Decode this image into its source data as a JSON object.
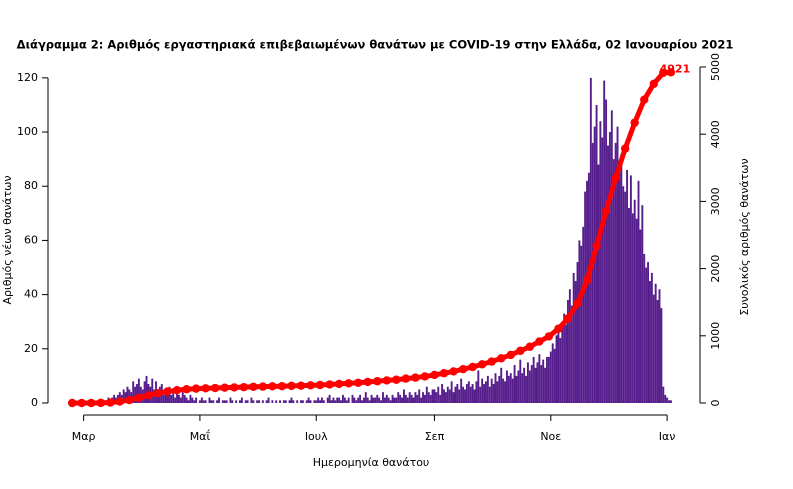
{
  "chart_data": {
    "type": "bar",
    "title": "Διάγραμμα 2: Αριθμός εργαστηριακά επιβεβαιωμένων θανάτων με COVID-19 στην Ελλάδα, 02 Ιανουαρίου 2021",
    "xlabel": "Ημερομηνία θανάτου",
    "ylabel": "Αριθμός νέων θανάτων",
    "y2label": "Συνολικός αριθμός θανάτων",
    "xlim": [
      -9,
      324
    ],
    "xticks": [
      {
        "value": 6,
        "label": "Μαρ"
      },
      {
        "value": 67,
        "label": "Μαΐ"
      },
      {
        "value": 128,
        "label": "Ιουλ"
      },
      {
        "value": 190,
        "label": "Σεπ"
      },
      {
        "value": 251,
        "label": "Νοε"
      },
      {
        "value": 312,
        "label": "Ιαν"
      }
    ],
    "ylim": [
      0,
      124
    ],
    "yticks": [
      0,
      20,
      40,
      60,
      80,
      100,
      120
    ],
    "y2lim": [
      0,
      5000
    ],
    "y2ticks": [
      0,
      1000,
      2000,
      3000,
      4000,
      5000
    ],
    "series": [
      {
        "type": "bar",
        "color": "#561e8c",
        "x": [
          0,
          1,
          2,
          3,
          4,
          5,
          6,
          7,
          8,
          9,
          10,
          11,
          12,
          13,
          14,
          15,
          16,
          17,
          18,
          19,
          20,
          21,
          22,
          23,
          24,
          25,
          26,
          27,
          28,
          29,
          30,
          31,
          32,
          33,
          34,
          35,
          36,
          37,
          38,
          39,
          40,
          41,
          42,
          43,
          44,
          45,
          46,
          47,
          48,
          49,
          50,
          51,
          52,
          53,
          54,
          55,
          56,
          57,
          58,
          59,
          60,
          61,
          62,
          63,
          64,
          65,
          66,
          67,
          68,
          69,
          70,
          71,
          72,
          73,
          74,
          75,
          76,
          77,
          78,
          79,
          80,
          81,
          82,
          83,
          84,
          85,
          86,
          87,
          88,
          89,
          90,
          91,
          92,
          93,
          94,
          95,
          96,
          97,
          98,
          99,
          100,
          101,
          102,
          103,
          104,
          105,
          106,
          107,
          108,
          109,
          110,
          111,
          112,
          113,
          114,
          115,
          116,
          117,
          118,
          119,
          120,
          121,
          122,
          123,
          124,
          125,
          126,
          127,
          128,
          129,
          130,
          131,
          132,
          133,
          134,
          135,
          136,
          137,
          138,
          139,
          140,
          141,
          142,
          143,
          144,
          145,
          146,
          147,
          148,
          149,
          150,
          151,
          152,
          153,
          154,
          155,
          156,
          157,
          158,
          159,
          160,
          161,
          162,
          163,
          164,
          165,
          166,
          167,
          168,
          169,
          170,
          171,
          172,
          173,
          174,
          175,
          176,
          177,
          178,
          179,
          180,
          181,
          182,
          183,
          184,
          185,
          186,
          187,
          188,
          189,
          190,
          191,
          192,
          193,
          194,
          195,
          196,
          197,
          198,
          199,
          200,
          201,
          202,
          203,
          204,
          205,
          206,
          207,
          208,
          209,
          210,
          211,
          212,
          213,
          214,
          215,
          216,
          217,
          218,
          219,
          220,
          221,
          222,
          223,
          224,
          225,
          226,
          227,
          228,
          229,
          230,
          231,
          232,
          233,
          234,
          235,
          236,
          237,
          238,
          239,
          240,
          241,
          242,
          243,
          244,
          245,
          246,
          247,
          248,
          249,
          250,
          251,
          252,
          253,
          254,
          255,
          256,
          257,
          258,
          259,
          260,
          261,
          262,
          263,
          264,
          265,
          266,
          267,
          268,
          269,
          270,
          271,
          272,
          273,
          274,
          275,
          276,
          277,
          278,
          279,
          280,
          281,
          282,
          283,
          284,
          285,
          286,
          287,
          288,
          289,
          290,
          291,
          292,
          293,
          294,
          295,
          296,
          297,
          298,
          299,
          300,
          301,
          302,
          303,
          304,
          305,
          306,
          307,
          308,
          309,
          310,
          311,
          312,
          313,
          314
        ],
        "values": [
          0,
          0,
          0,
          0,
          0,
          0,
          0,
          0,
          0,
          0,
          0,
          1,
          0,
          0,
          1,
          0,
          1,
          1,
          0,
          2,
          1,
          2,
          3,
          2,
          3,
          4,
          3,
          5,
          4,
          6,
          5,
          4,
          8,
          6,
          7,
          9,
          6,
          5,
          8,
          10,
          7,
          6,
          9,
          5,
          8,
          4,
          6,
          7,
          3,
          5,
          4,
          6,
          3,
          5,
          2,
          4,
          3,
          2,
          4,
          3,
          2,
          1,
          3,
          2,
          1,
          2,
          0,
          1,
          2,
          1,
          1,
          0,
          2,
          1,
          1,
          0,
          1,
          2,
          0,
          1,
          1,
          1,
          0,
          2,
          1,
          0,
          1,
          0,
          1,
          2,
          0,
          1,
          1,
          0,
          2,
          1,
          0,
          1,
          1,
          0,
          1,
          0,
          1,
          2,
          0,
          1,
          0,
          1,
          0,
          1,
          0,
          1,
          1,
          0,
          1,
          2,
          1,
          0,
          1,
          0,
          1,
          1,
          0,
          1,
          2,
          1,
          0,
          1,
          1,
          2,
          1,
          2,
          1,
          0,
          2,
          3,
          1,
          2,
          1,
          2,
          2,
          1,
          3,
          2,
          1,
          2,
          0,
          3,
          2,
          1,
          2,
          3,
          1,
          2,
          4,
          2,
          1,
          3,
          2,
          2,
          3,
          2,
          1,
          4,
          2,
          3,
          2,
          1,
          3,
          2,
          2,
          4,
          3,
          2,
          5,
          3,
          2,
          4,
          3,
          2,
          4,
          3,
          5,
          2,
          4,
          3,
          6,
          4,
          3,
          5,
          5,
          4,
          6,
          3,
          7,
          5,
          4,
          6,
          5,
          8,
          4,
          6,
          7,
          5,
          9,
          6,
          5,
          7,
          8,
          6,
          7,
          5,
          8,
          12,
          6,
          9,
          7,
          8,
          10,
          6,
          9,
          7,
          11,
          8,
          10,
          13,
          9,
          8,
          12,
          10,
          11,
          9,
          14,
          10,
          12,
          16,
          11,
          13,
          10,
          15,
          12,
          14,
          17,
          13,
          15,
          18,
          14,
          16,
          13,
          17,
          17,
          19,
          22,
          20,
          25,
          28,
          24,
          30,
          33,
          29,
          38,
          42,
          36,
          48,
          45,
          52,
          60,
          58,
          65,
          78,
          82,
          85,
          120,
          96,
          102,
          110,
          88,
          104,
          98,
          119,
          112,
          95,
          100,
          108,
          90,
          96,
          102,
          85,
          92,
          80,
          78,
          86,
          72,
          84,
          70,
          75,
          68,
          82,
          64,
          73,
          55,
          50,
          52,
          45,
          48,
          40,
          44,
          38,
          42,
          35,
          6,
          3,
          2,
          1,
          1
        ]
      },
      {
        "type": "line",
        "axis": "y2",
        "color": "#ff0000",
        "x": [
          0,
          5,
          10,
          15,
          20,
          25,
          30,
          35,
          40,
          45,
          50,
          55,
          60,
          65,
          70,
          75,
          80,
          85,
          90,
          95,
          100,
          105,
          110,
          115,
          120,
          125,
          130,
          135,
          140,
          145,
          150,
          155,
          160,
          165,
          170,
          175,
          180,
          185,
          190,
          195,
          200,
          205,
          210,
          215,
          220,
          225,
          230,
          235,
          240,
          245,
          250,
          255,
          260,
          265,
          270,
          275,
          280,
          285,
          290,
          295,
          300,
          305,
          310,
          314
        ],
        "values": [
          0,
          0,
          0,
          2,
          7,
          21,
          44,
          78,
          114,
          146,
          171,
          191,
          205,
          214,
          219,
          223,
          228,
          232,
          236,
          241,
          244,
          248,
          250,
          255,
          258,
          263,
          268,
          276,
          284,
          293,
          301,
          313,
          324,
          336,
          346,
          363,
          378,
          395,
          418,
          443,
          470,
          503,
          536,
          576,
          616,
          665,
          715,
          776,
          837,
          914,
          991,
          1105,
          1259,
          1482,
          1825,
          2338,
          2859,
          3348,
          3785,
          4172,
          4514,
          4749,
          4914,
          4921
        ]
      }
    ]
  }
}
